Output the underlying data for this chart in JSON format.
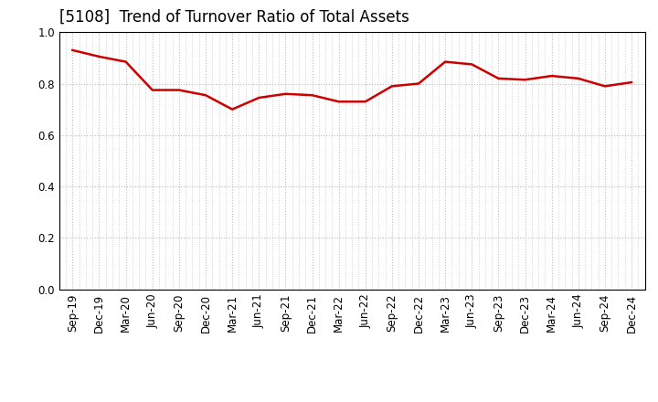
{
  "title": "[5108]  Trend of Turnover Ratio of Total Assets",
  "x_labels": [
    "Sep-19",
    "Dec-19",
    "Mar-20",
    "Jun-20",
    "Sep-20",
    "Dec-20",
    "Mar-21",
    "Jun-21",
    "Sep-21",
    "Dec-21",
    "Mar-22",
    "Jun-22",
    "Sep-22",
    "Dec-22",
    "Mar-23",
    "Jun-23",
    "Sep-23",
    "Dec-23",
    "Mar-24",
    "Jun-24",
    "Sep-24",
    "Dec-24"
  ],
  "values": [
    0.93,
    0.905,
    0.885,
    0.775,
    0.775,
    0.755,
    0.7,
    0.745,
    0.76,
    0.755,
    0.73,
    0.73,
    0.79,
    0.8,
    0.885,
    0.875,
    0.82,
    0.815,
    0.83,
    0.82,
    0.79,
    0.805
  ],
  "line_color": "#cc0000",
  "line_width": 1.8,
  "ylim": [
    0.0,
    1.0
  ],
  "yticks": [
    0.0,
    0.2,
    0.4,
    0.6,
    0.8,
    1.0
  ],
  "grid_color": "#bbbbbb",
  "background_color": "#ffffff",
  "title_fontsize": 12,
  "tick_fontsize": 8.5
}
